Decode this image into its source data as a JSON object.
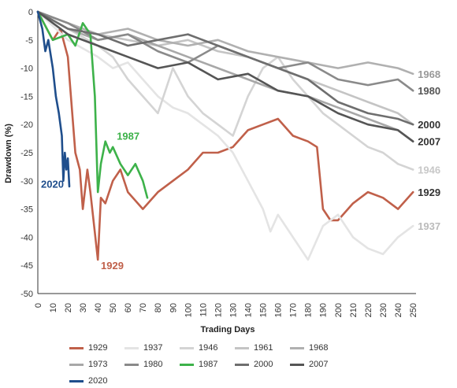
{
  "chart_data": {
    "type": "line",
    "title": "",
    "xlabel": "Trading Days",
    "ylabel": "Drawdown (%)",
    "xlim": [
      0,
      252
    ],
    "ylim": [
      -50,
      0
    ],
    "xticks": [
      0,
      10,
      20,
      30,
      40,
      50,
      60,
      70,
      80,
      90,
      100,
      110,
      120,
      130,
      140,
      150,
      160,
      170,
      180,
      190,
      200,
      210,
      220,
      230,
      240,
      250
    ],
    "yticks": [
      0,
      -5,
      -10,
      -15,
      -20,
      -25,
      -30,
      -35,
      -40,
      -45,
      -50
    ],
    "grid": false,
    "legend": "bottom",
    "series": [
      {
        "name": "1929",
        "color": "#c0604a",
        "end_label": "1929",
        "label_color": "#333333",
        "x": [
          0,
          10,
          15,
          20,
          25,
          28,
          30,
          33,
          35,
          40,
          42,
          45,
          50,
          55,
          60,
          70,
          80,
          90,
          100,
          110,
          120,
          130,
          140,
          150,
          160,
          170,
          180,
          186,
          190,
          195,
          200,
          210,
          220,
          230,
          240,
          250
        ],
        "y": [
          0,
          -5,
          -3,
          -8,
          -25,
          -28,
          -35,
          -28,
          -32,
          -44,
          -33,
          -34,
          -30,
          -28,
          -32,
          -35,
          -32,
          -30,
          -28,
          -25,
          -25,
          -24,
          -21,
          -20,
          -19,
          -22,
          -23,
          -24,
          -35,
          -37,
          -37,
          -34,
          -32,
          -33,
          -35,
          -32
        ]
      },
      {
        "name": "1937",
        "color": "#e4e4e4",
        "end_label": "1937",
        "label_color": "#bbbbbb",
        "x": [
          0,
          20,
          40,
          50,
          60,
          70,
          80,
          90,
          100,
          110,
          120,
          130,
          140,
          150,
          155,
          160,
          170,
          180,
          190,
          200,
          210,
          220,
          230,
          240,
          250
        ],
        "y": [
          0,
          -5,
          -8,
          -10,
          -9,
          -12,
          -15,
          -17,
          -18,
          -20,
          -22,
          -25,
          -30,
          -35,
          -39,
          -36,
          -40,
          -44,
          -38,
          -36,
          -40,
          -42,
          -43,
          -40,
          -38
        ]
      },
      {
        "name": "1946",
        "color": "#d4d4d4",
        "end_label": "1946",
        "label_color": "#c8c8c8",
        "x": [
          0,
          20,
          40,
          50,
          60,
          70,
          80,
          90,
          100,
          110,
          120,
          130,
          140,
          150,
          160,
          170,
          180,
          190,
          200,
          210,
          220,
          230,
          240,
          250
        ],
        "y": [
          0,
          -3,
          -6,
          -8,
          -12,
          -15,
          -18,
          -10,
          -15,
          -18,
          -20,
          -22,
          -15,
          -10,
          -8,
          -12,
          -15,
          -18,
          -20,
          -22,
          -24,
          -25,
          -27,
          -28
        ]
      },
      {
        "name": "1961",
        "color": "#c4c4c4",
        "end_label": "",
        "label_color": "#999999",
        "x": [
          0,
          20,
          40,
          60,
          80,
          100,
          120,
          140,
          160,
          180,
          200,
          220,
          240,
          250
        ],
        "y": [
          0,
          -2,
          -4,
          -5,
          -6,
          -5,
          -7,
          -8,
          -10,
          -12,
          -14,
          -16,
          -18,
          -20
        ]
      },
      {
        "name": "1968",
        "color": "#b0b0b0",
        "end_label": "1968",
        "label_color": "#999999",
        "x": [
          0,
          20,
          40,
          60,
          80,
          100,
          120,
          140,
          160,
          180,
          200,
          220,
          240,
          250
        ],
        "y": [
          0,
          -2,
          -4,
          -3,
          -5,
          -6,
          -5,
          -7,
          -8,
          -9,
          -10,
          -9,
          -10,
          -11
        ]
      },
      {
        "name": "1973",
        "color": "#a8a8a8",
        "end_label": "",
        "label_color": "#999999",
        "x": [
          0,
          20,
          40,
          60,
          80,
          100,
          120,
          140,
          160,
          180,
          200,
          220,
          240,
          250
        ],
        "y": [
          0,
          -3,
          -5,
          -4,
          -6,
          -8,
          -10,
          -12,
          -14,
          -15,
          -17,
          -19,
          -21,
          -23
        ]
      },
      {
        "name": "1980",
        "color": "#8a8a8a",
        "end_label": "1980",
        "label_color": "#555555",
        "x": [
          0,
          20,
          40,
          60,
          80,
          100,
          120,
          140,
          160,
          180,
          200,
          220,
          240,
          250
        ],
        "y": [
          0,
          -2,
          -5,
          -4,
          -7,
          -9,
          -6,
          -8,
          -10,
          -9,
          -12,
          -13,
          -12,
          -14
        ]
      },
      {
        "name": "1987",
        "color": "#3db24a",
        "end_label": "1987",
        "label_color": "#3db24a",
        "x": [
          0,
          10,
          20,
          25,
          30,
          35,
          38,
          40,
          42,
          45,
          48,
          50,
          55,
          60,
          65,
          70,
          73
        ],
        "y": [
          0,
          -5,
          -4,
          -6,
          -2,
          -4,
          -15,
          -32,
          -27,
          -23,
          -25,
          -24,
          -27,
          -29,
          -27,
          -30,
          -33
        ]
      },
      {
        "name": "2000",
        "color": "#6e6e6e",
        "end_label": "2000",
        "label_color": "#333333",
        "x": [
          0,
          20,
          40,
          60,
          80,
          100,
          120,
          140,
          160,
          180,
          200,
          220,
          240,
          250
        ],
        "y": [
          0,
          -3,
          -4,
          -6,
          -5,
          -4,
          -6,
          -8,
          -10,
          -12,
          -16,
          -18,
          -19,
          -20
        ]
      },
      {
        "name": "2007",
        "color": "#555555",
        "end_label": "2007",
        "label_color": "#333333",
        "x": [
          0,
          20,
          40,
          60,
          80,
          100,
          120,
          140,
          160,
          180,
          200,
          220,
          240,
          250
        ],
        "y": [
          0,
          -4,
          -6,
          -8,
          -10,
          -9,
          -12,
          -11,
          -14,
          -15,
          -18,
          -20,
          -21,
          -23
        ]
      },
      {
        "name": "2020",
        "color": "#1f4e8c",
        "end_label": "2020",
        "label_color": "#1f4e8c",
        "x": [
          0,
          3,
          5,
          7,
          10,
          12,
          14,
          16,
          17,
          18,
          19,
          20,
          21
        ],
        "y": [
          0,
          -3,
          -7,
          -5,
          -10,
          -15,
          -18,
          -22,
          -30,
          -25,
          -28,
          -26,
          -31
        ]
      }
    ]
  }
}
